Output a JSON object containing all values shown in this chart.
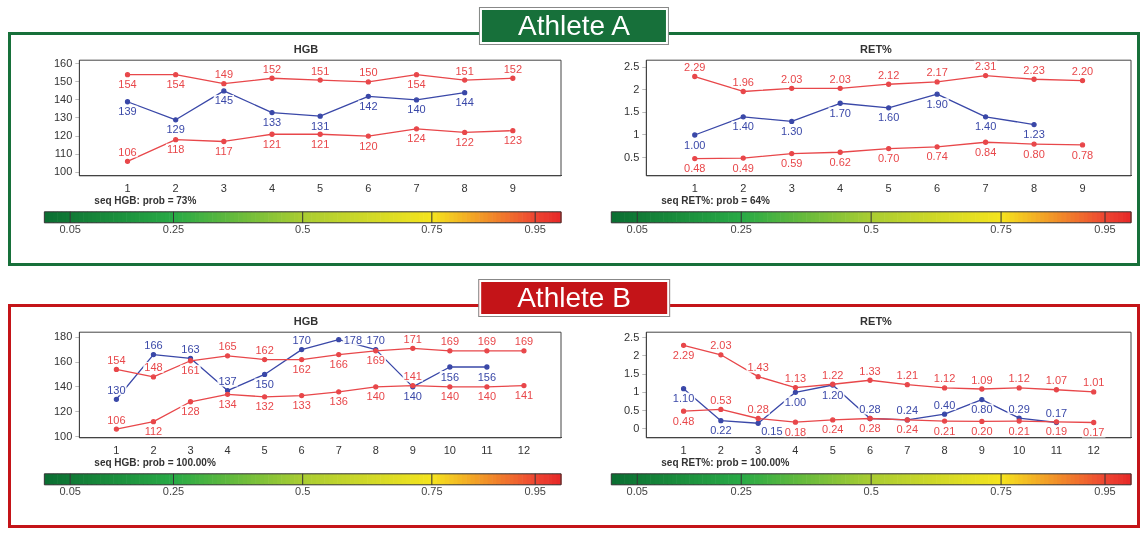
{
  "chart_data": [
    {
      "type": "other",
      "title": "Athlete A",
      "color": "#17703a"
    },
    {
      "type": "line",
      "title": "HGB",
      "x": [
        1,
        2,
        3,
        4,
        5,
        6,
        7,
        8,
        9
      ],
      "xlim": [
        0,
        10
      ],
      "xticks": [
        1,
        2,
        3,
        4,
        5,
        6,
        7,
        8,
        9
      ],
      "ylim": [
        98,
        162
      ],
      "yticks": [
        100,
        110,
        120,
        130,
        140,
        150,
        160
      ],
      "marker": "circle",
      "clim": [
        0,
        1
      ],
      "cticks": [
        0.05,
        0.25,
        0.5,
        0.75,
        0.95
      ],
      "annotations": [
        "seq HGB: prob = 73%"
      ],
      "series": [
        {
          "color": "#e8474a",
          "values": [
            154,
            154,
            149,
            152,
            151,
            150,
            154,
            151,
            152
          ],
          "value_labels": [
            "154",
            "154",
            "149",
            "152",
            "151",
            "150",
            "154",
            "151",
            "152"
          ]
        },
        {
          "color": "#e8474a",
          "values": [
            106,
            118,
            117,
            121,
            121,
            120,
            124,
            122,
            123
          ],
          "value_labels": [
            "106",
            "118",
            "117",
            "121",
            "121",
            "120",
            "124",
            "122",
            "123"
          ]
        },
        {
          "color": "#3a48a8",
          "values": [
            139,
            129,
            145,
            133,
            131,
            142,
            140,
            144,
            null
          ],
          "value_labels": [
            "139",
            "129",
            "145",
            "133",
            "131",
            "142",
            "140",
            "144",
            null
          ]
        }
      ]
    },
    {
      "type": "line",
      "title": "RET%",
      "x": [
        1,
        2,
        3,
        4,
        5,
        6,
        7,
        8,
        9
      ],
      "xlim": [
        0,
        10
      ],
      "xticks": [
        1,
        2,
        3,
        4,
        5,
        6,
        7,
        8,
        9
      ],
      "ylim": [
        0.1,
        2.65
      ],
      "yticks": [
        0.5,
        1,
        1.5,
        2,
        2.5
      ],
      "marker": "circle",
      "clim": [
        0,
        1
      ],
      "cticks": [
        0.05,
        0.25,
        0.5,
        0.75,
        0.95
      ],
      "annotations": [
        "seq RET%: prob = 64%"
      ],
      "series": [
        {
          "color": "#e8474a",
          "values": [
            2.29,
            1.96,
            2.03,
            2.03,
            2.12,
            2.17,
            2.31,
            2.23,
            2.2
          ],
          "value_labels": [
            "2.29",
            "1.96",
            "2.03",
            "2.03",
            "2.12",
            "2.17",
            "2.31",
            "2.23",
            "2.20"
          ]
        },
        {
          "color": "#e8474a",
          "values": [
            0.48,
            0.49,
            0.59,
            0.62,
            0.7,
            0.74,
            0.84,
            0.8,
            0.78
          ],
          "value_labels": [
            "0.48",
            "0.49",
            "0.59",
            "0.62",
            "0.70",
            "0.74",
            "0.84",
            "0.80",
            "0.78"
          ]
        },
        {
          "color": "#3a48a8",
          "values": [
            1.0,
            1.4,
            1.3,
            1.7,
            1.6,
            1.9,
            1.4,
            1.23,
            null
          ],
          "value_labels": [
            "1.00",
            "1.40",
            "1.30",
            "1.70",
            "1.60",
            "1.90",
            "1.40",
            "1.23",
            null
          ]
        }
      ]
    },
    {
      "type": "other",
      "title": "Athlete B",
      "color": "#c41418"
    },
    {
      "type": "line",
      "title": "HGB",
      "x": [
        1,
        2,
        3,
        4,
        5,
        6,
        7,
        8,
        9,
        10,
        11,
        12
      ],
      "xlim": [
        0,
        13
      ],
      "xticks": [
        1,
        2,
        3,
        4,
        5,
        6,
        7,
        8,
        9,
        10,
        11,
        12
      ],
      "ylim": [
        99,
        184
      ],
      "yticks": [
        100,
        120,
        140,
        160,
        180
      ],
      "marker": "circle",
      "clim": [
        0,
        1
      ],
      "cticks": [
        0.05,
        0.25,
        0.5,
        0.75,
        0.95
      ],
      "annotations": [
        "seq HGB: prob = 100.00%"
      ],
      "series": [
        {
          "color": "#e8474a",
          "values": [
            154,
            148,
            161,
            165,
            162,
            162,
            166,
            169,
            171,
            169,
            169,
            169
          ],
          "value_labels": [
            "154",
            "148",
            "161",
            "165",
            "162",
            "162",
            "166",
            "169",
            "171",
            "169",
            "169",
            "169"
          ]
        },
        {
          "color": "#e8474a",
          "values": [
            106,
            112,
            128,
            134,
            132,
            133,
            136,
            140,
            141,
            140,
            140,
            141
          ],
          "value_labels": [
            "106",
            "112",
            "128",
            "134",
            "132",
            "133",
            "136",
            "140",
            "141",
            "140",
            "140",
            "141"
          ]
        },
        {
          "color": "#3a48a8",
          "values": [
            130,
            166,
            163,
            137,
            150,
            170,
            178,
            170,
            140,
            156,
            156,
            null
          ],
          "value_labels": [
            "130",
            "166",
            "163",
            "137",
            "150",
            "170",
            "178",
            "170",
            "140",
            "156",
            "156",
            null
          ]
        }
      ]
    },
    {
      "type": "line",
      "title": "RET%",
      "x": [
        1,
        2,
        3,
        4,
        5,
        6,
        7,
        8,
        9,
        10,
        11,
        12
      ],
      "xlim": [
        0,
        13
      ],
      "xticks": [
        1,
        2,
        3,
        4,
        5,
        6,
        7,
        8,
        9,
        10,
        11,
        12
      ],
      "ylim": [
        -0.25,
        2.65
      ],
      "yticks": [
        0,
        0.5,
        1,
        1.5,
        2,
        2.5
      ],
      "marker": "circle",
      "clim": [
        0,
        1
      ],
      "cticks": [
        0.05,
        0.25,
        0.5,
        0.75,
        0.95
      ],
      "annotations": [
        "seq RET%: prob = 100.00%"
      ],
      "series": [
        {
          "color": "#e8474a",
          "values": [
            2.29,
            2.03,
            1.43,
            1.13,
            1.22,
            1.33,
            1.21,
            1.12,
            1.09,
            1.12,
            1.07,
            1.01
          ],
          "value_labels": [
            "2.29",
            "2.03",
            "1.43",
            "1.13",
            "1.22",
            "1.33",
            "1.21",
            "1.12",
            "1.09",
            "1.12",
            "1.07",
            "1.01"
          ]
        },
        {
          "color": "#e8474a",
          "values": [
            0.48,
            0.53,
            0.28,
            0.18,
            0.24,
            0.28,
            0.24,
            0.21,
            0.2,
            0.21,
            0.19,
            0.17
          ],
          "value_labels": [
            "0.48",
            "0.53",
            "0.28",
            "0.18",
            "0.24",
            "0.28",
            "0.24",
            "0.21",
            "0.20",
            "0.21",
            "0.19",
            "0.17"
          ]
        },
        {
          "color": "#3a48a8",
          "values": [
            1.1,
            0.22,
            0.15,
            1.0,
            1.2,
            0.28,
            0.24,
            0.4,
            0.8,
            0.29,
            0.17,
            null
          ],
          "value_labels": [
            "1.10",
            "0.22",
            "0.15",
            "1.00",
            "1.20",
            "0.28",
            "0.24",
            "0.40",
            "0.80",
            "0.29",
            "0.17",
            null
          ]
        }
      ]
    }
  ]
}
